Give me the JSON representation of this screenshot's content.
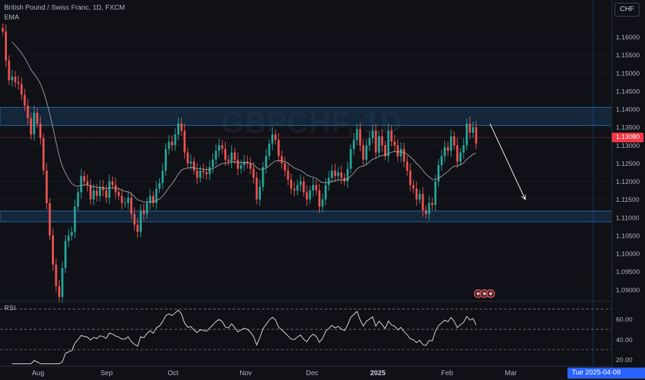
{
  "header": {
    "symbol": "British Pound / Swiss Franc, 1D, FXCM",
    "indicator": "EMA",
    "currency": "CHF",
    "current_price": "1.13080",
    "rsi_label": "RSI",
    "cursor_date": "Tue 2025-04-08"
  },
  "colors": {
    "up": "#26a69a",
    "down": "#ef5350",
    "ema": "#9e9e9e",
    "zone": "#1f4e79",
    "background": "#0f1117",
    "rsi": "#e0e0e0"
  },
  "chart_data": {
    "type": "candlestick",
    "x_ticks": [
      "Aug",
      "Sep",
      "Oct",
      "Nov",
      "Dec",
      "2025",
      "Feb",
      "Mar"
    ],
    "price_axis": [
      "1.16000",
      "1.15500",
      "1.15000",
      "1.14500",
      "1.14000",
      "1.13500",
      "1.13000",
      "1.12500",
      "1.12000",
      "1.11500",
      "1.11000",
      "1.10500",
      "1.10000",
      "1.09500",
      "1.09000"
    ],
    "ylim": [
      1.087,
      1.1645
    ],
    "resistance_zone": [
      1.1355,
      1.1405
    ],
    "support_zone": [
      1.1088,
      1.1118
    ],
    "projection": {
      "from": [
        1.136,
        "2025-02-14"
      ],
      "to": [
        1.115,
        "2025-03-10"
      ]
    },
    "rsi_axis": [
      "60.00",
      "40.00",
      "20.00"
    ],
    "rsi_levels": [
      70,
      50,
      30
    ],
    "rsi_ylim": [
      15,
      75
    ],
    "closes": [
      1.1615,
      1.1535,
      1.148,
      1.149,
      1.1475,
      1.147,
      1.144,
      1.141,
      1.1375,
      1.133,
      1.139,
      1.136,
      1.132,
      1.123,
      1.114,
      1.105,
      1.097,
      1.091,
      1.088,
      1.096,
      1.1035,
      1.105,
      1.106,
      1.113,
      1.117,
      1.1215,
      1.12,
      1.119,
      1.115,
      1.1175,
      1.116,
      1.1185,
      1.1175,
      1.1155,
      1.12,
      1.119,
      1.117,
      1.116,
      1.114,
      1.114,
      1.1155,
      1.111,
      1.108,
      1.106,
      1.112,
      1.111,
      1.114,
      1.116,
      1.114,
      1.118,
      1.1195,
      1.123,
      1.129,
      1.131,
      1.13,
      1.133,
      1.136,
      1.134,
      1.128,
      1.125,
      1.1255,
      1.123,
      1.121,
      1.123,
      1.1225,
      1.122,
      1.124,
      1.126,
      1.1285,
      1.13,
      1.129,
      1.126,
      1.1255,
      1.128,
      1.126,
      1.1235,
      1.1245,
      1.1255,
      1.125,
      1.1235,
      1.121,
      1.115,
      1.1185,
      1.124,
      1.127,
      1.1305,
      1.133,
      1.1315,
      1.127,
      1.125,
      1.123,
      1.1205,
      1.118,
      1.1175,
      1.119,
      1.12,
      1.117,
      1.115,
      1.1175,
      1.119,
      1.1175,
      1.113,
      1.115,
      1.119,
      1.121,
      1.123,
      1.1215,
      1.1225,
      1.121,
      1.12,
      1.1235,
      1.129,
      1.1315,
      1.1345,
      1.13,
      1.126,
      1.13,
      1.132,
      1.134,
      1.128,
      1.1325,
      1.13,
      1.127,
      1.134,
      1.131,
      1.13,
      1.127,
      1.129,
      1.1255,
      1.123,
      1.119,
      1.118,
      1.115,
      1.1165,
      1.112,
      1.111,
      1.114,
      1.1135,
      1.12,
      1.1245,
      1.127,
      1.1295,
      1.1285,
      1.1325,
      1.13,
      1.1255,
      1.128,
      1.13,
      1.136,
      1.1335,
      1.135,
      1.1305
    ]
  }
}
